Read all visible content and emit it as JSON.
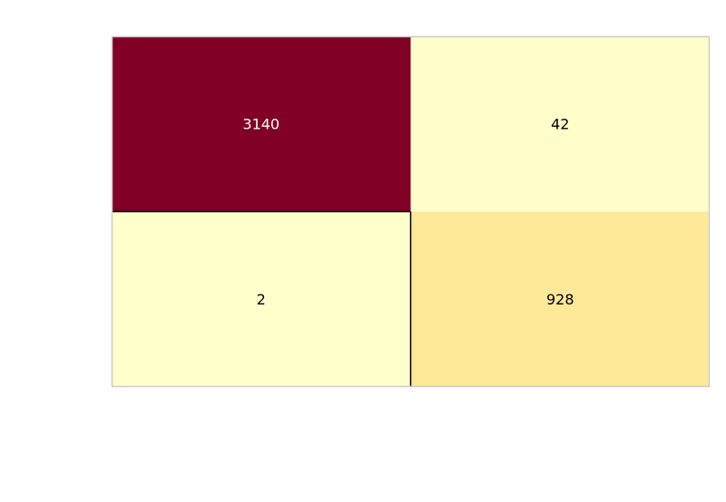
{
  "chart_data": {
    "type": "heatmap",
    "rows": 2,
    "cols": 2,
    "values": [
      [
        3140,
        42
      ],
      [
        2,
        928
      ]
    ],
    "labels": [
      [
        "3140",
        "42"
      ],
      [
        "2",
        "928"
      ]
    ],
    "colors": {
      "max": "#800026",
      "mid": "#fed976",
      "min": "#ffffcc",
      "text_dark": "#000000",
      "text_light": "#ffffff",
      "frame": "#cccccc",
      "diagonal_edge": "#000000"
    },
    "colormap": "YlOrRd",
    "grid": false,
    "title": "",
    "xlabel": "",
    "ylabel": ""
  }
}
